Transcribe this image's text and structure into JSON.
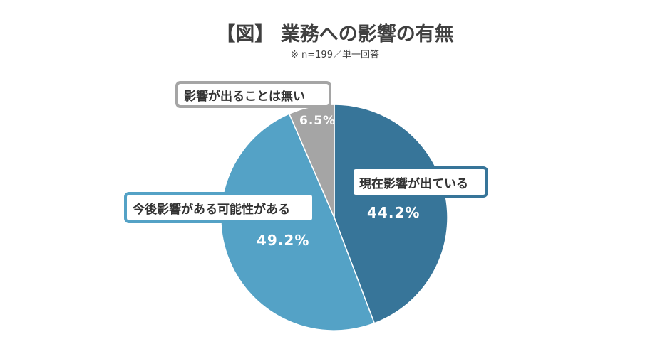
{
  "header": {
    "title": "【図】 業務への影響の有無",
    "subtitle": "※ n=199／単一回答"
  },
  "colors": {
    "current": "#377599",
    "possible": "#54A2C6",
    "none": "#A5A5A5",
    "text_dark": "#404040",
    "callout_border_none": "#A5A5A5"
  },
  "labels": {
    "current": "現在影響が出ている",
    "possible": "今後影響がある可能性がある",
    "none": "影響が出ることは無い"
  },
  "values": {
    "current": "44.2%",
    "possible": "49.2%",
    "none": "6.5%"
  },
  "chart_data": {
    "type": "pie",
    "title": "【図】 業務への影響の有無",
    "subtitle": "※ n=199／単一回答",
    "categories": [
      "現在影響が出ている",
      "今後影響がある可能性がある",
      "影響が出ることは無い"
    ],
    "values": [
      44.2,
      49.2,
      6.5
    ],
    "unit": "%",
    "start_angle": "12 o'clock, clockwise",
    "colors": [
      "#377599",
      "#54A2C6",
      "#A5A5A5"
    ],
    "legend": "none (callout labels on slices)"
  }
}
